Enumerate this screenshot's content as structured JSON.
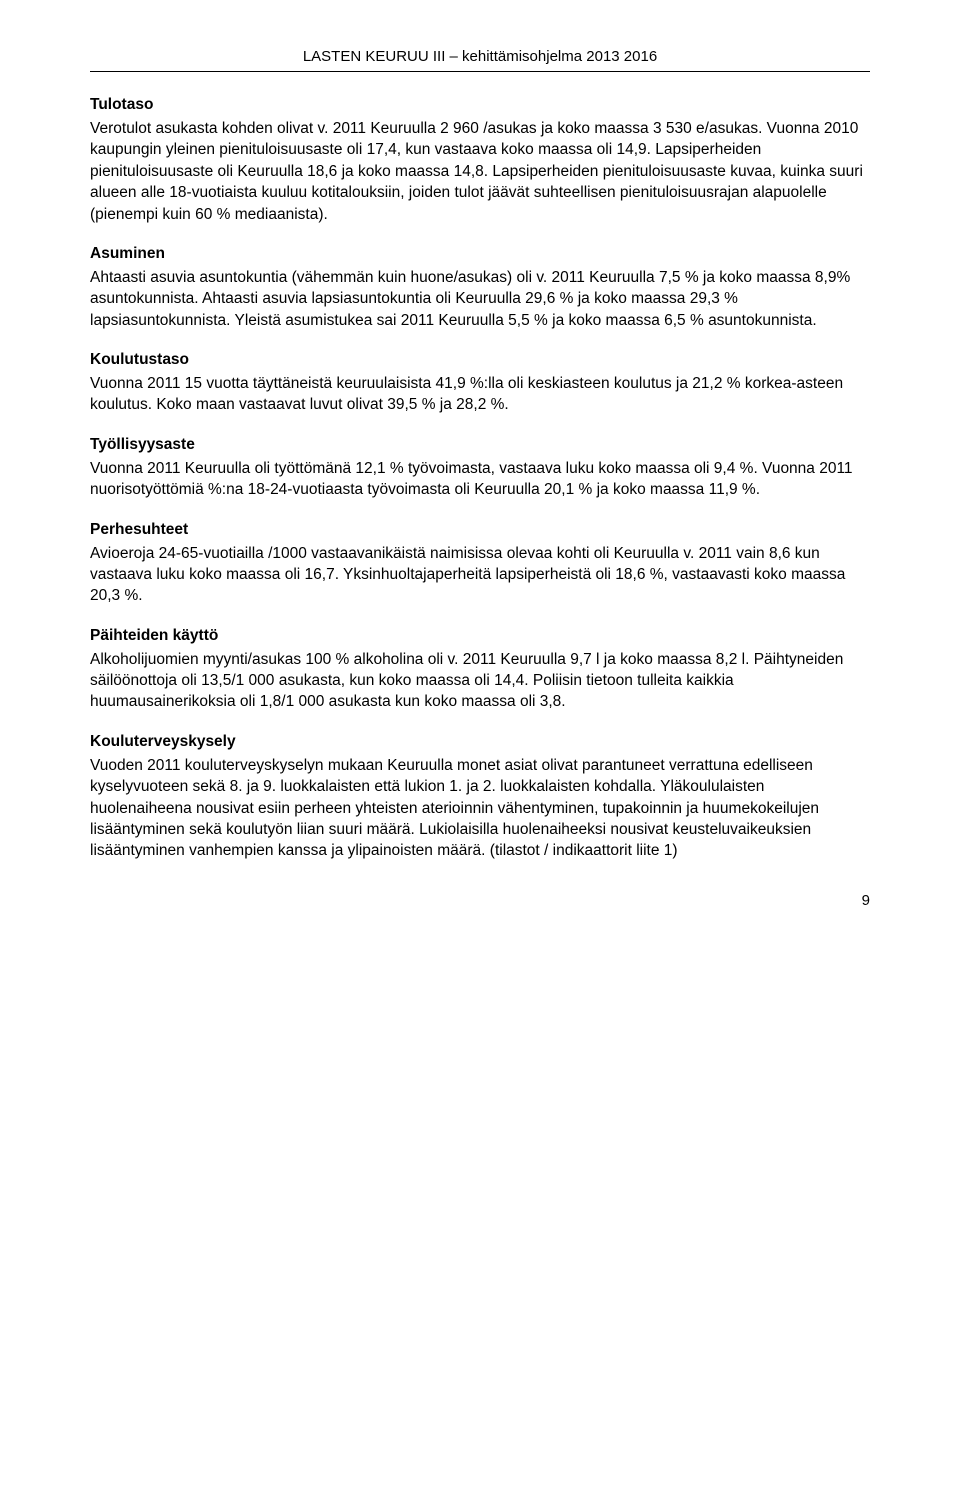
{
  "header": {
    "text": "LASTEN KEURUU III – kehittämisohjelma 2013 2016"
  },
  "sections": [
    {
      "title": "Tulotaso",
      "body": "Verotulot asukasta kohden olivat v. 2011 Keuruulla 2 960 /asukas ja koko maassa 3 530 e/asukas. Vuonna 2010 kaupungin yleinen pienituloisuusaste oli 17,4, kun vastaava koko maassa oli 14,9. Lapsiperheiden pienituloisuusaste oli Keuruulla 18,6 ja koko maassa 14,8. Lapsiperheiden pienituloisuusaste kuvaa, kuinka suuri alueen alle 18-vuotiaista kuuluu kotitalouksiin, joiden tulot jäävät suhteellisen pienituloisuusrajan alapuolelle (pienempi kuin 60 % mediaanista)."
    },
    {
      "title": "Asuminen",
      "body": "Ahtaasti asuvia asuntokuntia (vähemmän kuin huone/asukas) oli v. 2011 Keuruulla 7,5 % ja koko maassa 8,9% asuntokunnista. Ahtaasti asuvia lapsiasuntokuntia oli Keuruulla 29,6 % ja koko maassa 29,3 % lapsiasuntokunnista. Yleistä asumistukea sai 2011 Keuruulla 5,5 % ja koko maassa 6,5 % asuntokunnista."
    },
    {
      "title": "Koulutustaso",
      "body": "Vuonna 2011 15 vuotta täyttäneistä keuruulaisista 41,9 %:lla oli keskiasteen koulutus ja 21,2 % korkea-asteen koulutus. Koko maan vastaavat luvut olivat 39,5 % ja 28,2 %."
    },
    {
      "title": "Työllisyysaste",
      "body": "Vuonna 2011 Keuruulla oli työttömänä 12,1 % työvoimasta, vastaava luku koko maassa oli 9,4 %. Vuonna 2011 nuorisotyöttömiä %:na 18-24-vuotiaasta työvoimasta oli Keuruulla 20,1 % ja koko maassa 11,9 %."
    },
    {
      "title": "Perhesuhteet",
      "body": "Avioeroja 24-65-vuotiailla /1000 vastaavanikäistä naimisissa olevaa kohti oli Keuruulla v. 2011 vain 8,6 kun vastaava luku koko maassa oli 16,7. Yksinhuoltajaperheitä lapsiperheistä oli 18,6 %, vastaavasti koko maassa 20,3 %."
    },
    {
      "title": "Päihteiden käyttö",
      "body": "Alkoholijuomien myynti/asukas 100 % alkoholina oli v. 2011 Keuruulla 9,7 l ja koko maassa 8,2 l. Päihtyneiden säilöönottoja oli 13,5/1 000 asukasta, kun koko maassa oli 14,4. Poliisin tietoon tulleita kaikkia huumausainerikoksia oli 1,8/1 000 asukasta kun koko maassa oli 3,8."
    },
    {
      "title": "Kouluterveyskysely",
      "body": "Vuoden 2011 kouluterveyskyselyn mukaan Keuruulla monet asiat olivat parantuneet verrattuna edelliseen kyselyvuoteen sekä 8. ja 9. luokkalaisten että lukion 1. ja 2. luokkalaisten kohdalla. Yläkoululaisten huolenaiheena nousivat esiin perheen yhteisten aterioinnin vähentyminen, tupakoinnin ja huumekokeilujen lisääntyminen sekä koulutyön liian suuri määrä. Lukiolaisilla huolenaiheeksi nousivat keusteluvaikeuksien lisääntyminen vanhempien kanssa ja ylipainoisten määrä.\n(tilastot / indikaattorit liite 1)"
    }
  ],
  "pageNumber": "9",
  "style": {
    "pageWidth": 960,
    "pageHeight": 1512,
    "background": "#ffffff",
    "textColor": "#000000",
    "fontFamily": "Arial, Helvetica, sans-serif",
    "bodyFontSize": 15.5,
    "headerFontSize": 15,
    "lineHeight": 1.38,
    "dividerColor": "#000000"
  }
}
